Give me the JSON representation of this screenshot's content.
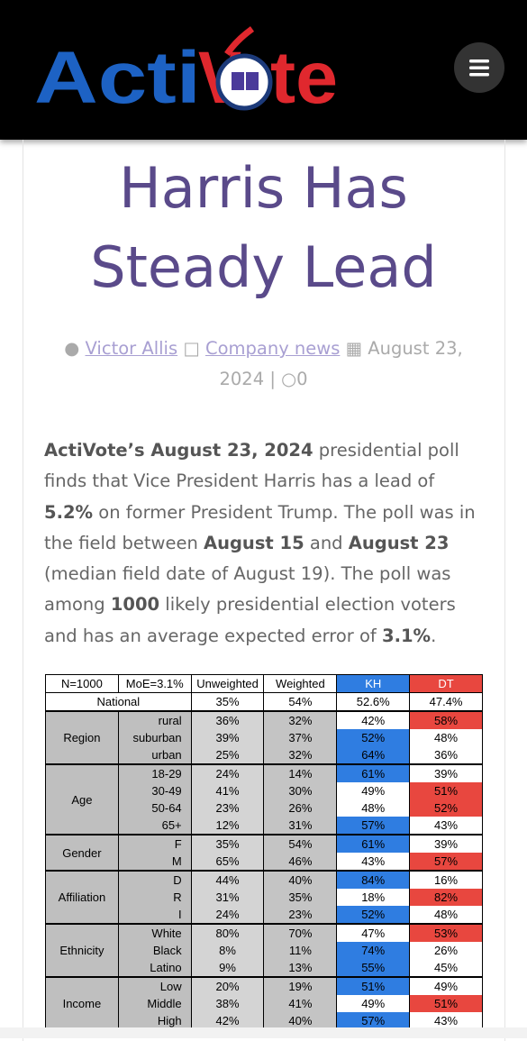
{
  "header": {
    "logo": [
      "Acti",
      "V",
      "te"
    ]
  },
  "article": {
    "title": "Harris Has Steady Lead",
    "meta": {
      "author": "Victor Allis",
      "category": "Company news",
      "date": "August 23, 2024",
      "separator": "|",
      "comments": "0"
    },
    "paragraph": [
      {
        "text": "ActiVote’s August 23, 2024",
        "bold": true
      },
      {
        "text": " presidential poll finds that Vice President Harris has a lead of ",
        "bold": false
      },
      {
        "text": "5.2%",
        "bold": true
      },
      {
        "text": " on former President Trump. The poll was in the field between ",
        "bold": false
      },
      {
        "text": "August 15",
        "bold": true
      },
      {
        "text": " and ",
        "bold": false
      },
      {
        "text": "August 23",
        "bold": true
      },
      {
        "text": " (median field date of August 19). The poll was among ",
        "bold": false
      },
      {
        "text": "1000",
        "bold": true
      },
      {
        "text": " likely presidential election voters and has an average expected error of ",
        "bold": false
      },
      {
        "text": "3.1%",
        "bold": true
      },
      {
        "text": ".",
        "bold": false
      }
    ]
  },
  "table": {
    "header": [
      "N=1000",
      "MoE=3.1%",
      "Unweighted",
      "Weighted",
      "KH",
      "DT"
    ],
    "national": [
      "National",
      "35%",
      "54%",
      "52.6%",
      "47.4%"
    ],
    "groups": [
      {
        "label": "Region",
        "rows": [
          [
            "rural",
            "36%",
            "32%",
            "42%",
            "58%"
          ],
          [
            "suburban",
            "39%",
            "37%",
            "52%",
            "48%"
          ],
          [
            "urban",
            "25%",
            "32%",
            "64%",
            "36%"
          ]
        ]
      },
      {
        "label": "Age",
        "rows": [
          [
            "18-29",
            "24%",
            "14%",
            "61%",
            "39%"
          ],
          [
            "30-49",
            "41%",
            "30%",
            "49%",
            "51%"
          ],
          [
            "50-64",
            "23%",
            "26%",
            "48%",
            "52%"
          ],
          [
            "65+",
            "12%",
            "31%",
            "57%",
            "43%"
          ]
        ]
      },
      {
        "label": "Gender",
        "rows": [
          [
            "F",
            "35%",
            "54%",
            "61%",
            "39%"
          ],
          [
            "M",
            "65%",
            "46%",
            "43%",
            "57%"
          ]
        ]
      },
      {
        "label": "Affiliation",
        "rows": [
          [
            "D",
            "44%",
            "40%",
            "84%",
            "16%"
          ],
          [
            "R",
            "31%",
            "35%",
            "18%",
            "82%"
          ],
          [
            "I",
            "24%",
            "23%",
            "52%",
            "48%"
          ]
        ]
      },
      {
        "label": "Ethnicity",
        "rows": [
          [
            "White",
            "80%",
            "70%",
            "47%",
            "53%"
          ],
          [
            "Black",
            "8%",
            "11%",
            "74%",
            "26%"
          ],
          [
            "Latino",
            "9%",
            "13%",
            "55%",
            "45%"
          ]
        ]
      },
      {
        "label": "Income",
        "rows": [
          [
            "Low",
            "20%",
            "19%",
            "51%",
            "49%"
          ],
          [
            "Middle",
            "38%",
            "41%",
            "49%",
            "51%"
          ],
          [
            "High",
            "42%",
            "40%",
            "57%",
            "43%"
          ]
        ]
      }
    ]
  }
}
